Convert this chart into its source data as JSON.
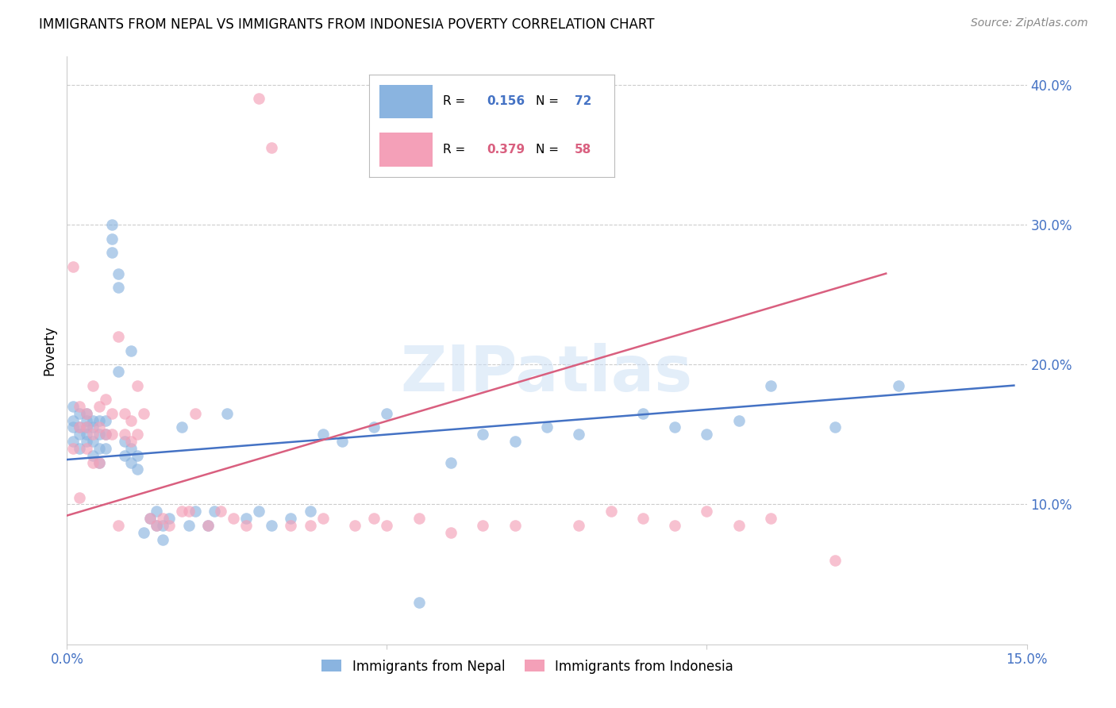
{
  "title": "IMMIGRANTS FROM NEPAL VS IMMIGRANTS FROM INDONESIA POVERTY CORRELATION CHART",
  "source": "Source: ZipAtlas.com",
  "ylabel": "Poverty",
  "xlim": [
    0.0,
    0.15
  ],
  "ylim": [
    0.0,
    0.42
  ],
  "yticks": [
    0.1,
    0.2,
    0.3,
    0.4
  ],
  "nepal_R": 0.156,
  "nepal_N": 72,
  "indonesia_R": 0.379,
  "indonesia_N": 58,
  "nepal_color": "#8ab4e0",
  "indonesia_color": "#f4a0b8",
  "nepal_line_color": "#4472c4",
  "indonesia_line_color": "#d95f7f",
  "tick_color": "#4472c4",
  "grid_color": "#cccccc",
  "nepal_line_x0": 0.0,
  "nepal_line_y0": 0.132,
  "nepal_line_x1": 0.148,
  "nepal_line_y1": 0.185,
  "indonesia_line_x0": 0.0,
  "indonesia_line_y0": 0.092,
  "indonesia_line_x1": 0.128,
  "indonesia_line_y1": 0.265,
  "nepal_x": [
    0.001,
    0.001,
    0.001,
    0.001,
    0.002,
    0.002,
    0.002,
    0.002,
    0.003,
    0.003,
    0.003,
    0.003,
    0.003,
    0.004,
    0.004,
    0.004,
    0.004,
    0.005,
    0.005,
    0.005,
    0.005,
    0.006,
    0.006,
    0.006,
    0.007,
    0.007,
    0.007,
    0.008,
    0.008,
    0.008,
    0.009,
    0.009,
    0.01,
    0.01,
    0.01,
    0.011,
    0.011,
    0.012,
    0.013,
    0.014,
    0.014,
    0.015,
    0.015,
    0.016,
    0.018,
    0.019,
    0.02,
    0.022,
    0.023,
    0.025,
    0.028,
    0.03,
    0.032,
    0.035,
    0.038,
    0.04,
    0.043,
    0.048,
    0.05,
    0.055,
    0.06,
    0.065,
    0.07,
    0.075,
    0.08,
    0.09,
    0.095,
    0.1,
    0.105,
    0.11,
    0.12,
    0.13
  ],
  "nepal_y": [
    0.155,
    0.145,
    0.16,
    0.17,
    0.14,
    0.155,
    0.165,
    0.15,
    0.145,
    0.155,
    0.165,
    0.15,
    0.16,
    0.135,
    0.145,
    0.155,
    0.16,
    0.13,
    0.14,
    0.15,
    0.16,
    0.14,
    0.15,
    0.16,
    0.28,
    0.29,
    0.3,
    0.255,
    0.265,
    0.195,
    0.135,
    0.145,
    0.21,
    0.13,
    0.14,
    0.125,
    0.135,
    0.08,
    0.09,
    0.085,
    0.095,
    0.075,
    0.085,
    0.09,
    0.155,
    0.085,
    0.095,
    0.085,
    0.095,
    0.165,
    0.09,
    0.095,
    0.085,
    0.09,
    0.095,
    0.15,
    0.145,
    0.155,
    0.165,
    0.03,
    0.13,
    0.15,
    0.145,
    0.155,
    0.15,
    0.165,
    0.155,
    0.15,
    0.16,
    0.185,
    0.155,
    0.185
  ],
  "indonesia_x": [
    0.001,
    0.001,
    0.002,
    0.002,
    0.002,
    0.003,
    0.003,
    0.003,
    0.004,
    0.004,
    0.004,
    0.005,
    0.005,
    0.005,
    0.006,
    0.006,
    0.007,
    0.007,
    0.008,
    0.008,
    0.009,
    0.009,
    0.01,
    0.01,
    0.011,
    0.011,
    0.012,
    0.013,
    0.014,
    0.015,
    0.016,
    0.018,
    0.019,
    0.02,
    0.022,
    0.024,
    0.026,
    0.028,
    0.03,
    0.032,
    0.035,
    0.038,
    0.04,
    0.045,
    0.048,
    0.05,
    0.055,
    0.06,
    0.065,
    0.07,
    0.08,
    0.085,
    0.09,
    0.095,
    0.1,
    0.105,
    0.11,
    0.12
  ],
  "indonesia_y": [
    0.27,
    0.14,
    0.155,
    0.17,
    0.105,
    0.14,
    0.155,
    0.165,
    0.13,
    0.15,
    0.185,
    0.13,
    0.155,
    0.17,
    0.15,
    0.175,
    0.165,
    0.15,
    0.085,
    0.22,
    0.15,
    0.165,
    0.16,
    0.145,
    0.15,
    0.185,
    0.165,
    0.09,
    0.085,
    0.09,
    0.085,
    0.095,
    0.095,
    0.165,
    0.085,
    0.095,
    0.09,
    0.085,
    0.39,
    0.355,
    0.085,
    0.085,
    0.09,
    0.085,
    0.09,
    0.085,
    0.09,
    0.08,
    0.085,
    0.085,
    0.085,
    0.095,
    0.09,
    0.085,
    0.095,
    0.085,
    0.09,
    0.06
  ]
}
